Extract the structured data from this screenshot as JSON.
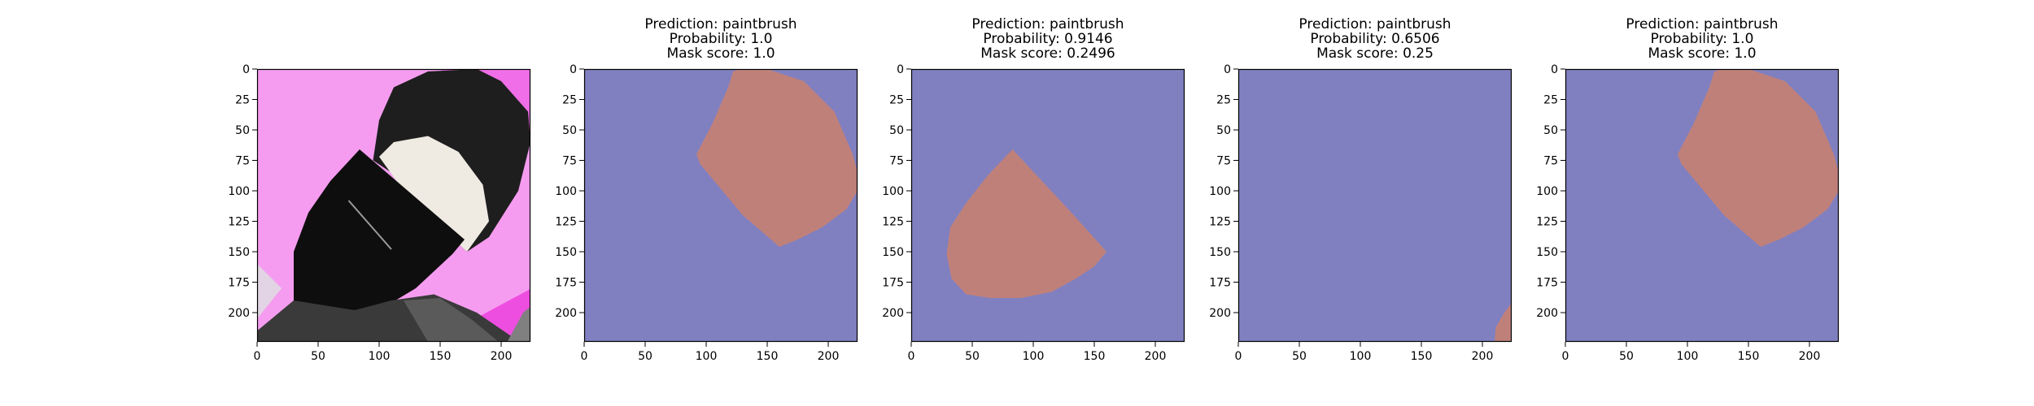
{
  "colors": {
    "background": "#8080c0",
    "mask": "#c0807a",
    "axes": "#000000",
    "photo_bg": "#f59cf0",
    "bristles_dark": "#1e1e1e",
    "bristles_light": "#efeae2",
    "brush_body": "#0e0e0e",
    "ferrule": "#3a3a3a"
  },
  "chart_data": [
    {
      "type": "image",
      "content": "input-photo-paintbrush",
      "title_lines": [],
      "xlim": [
        0,
        224
      ],
      "ylim": [
        224,
        0
      ],
      "xticks": [
        0,
        50,
        100,
        150,
        200
      ],
      "yticks": [
        0,
        25,
        50,
        75,
        100,
        125,
        150,
        175,
        200
      ]
    },
    {
      "type": "heatmap",
      "title_lines": [
        "Prediction: paintbrush",
        "Probability: 1.0",
        "Mask score: 1.0"
      ],
      "xlim": [
        0,
        224
      ],
      "ylim": [
        224,
        0
      ],
      "xticks": [
        0,
        50,
        100,
        150,
        200
      ],
      "yticks": [
        0,
        25,
        50,
        75,
        100,
        125,
        150,
        175,
        200
      ],
      "mask_polygon": [
        [
          122,
          2
        ],
        [
          128,
          0
        ],
        [
          150,
          0
        ],
        [
          180,
          10
        ],
        [
          205,
          35
        ],
        [
          220,
          70
        ],
        [
          224,
          85
        ],
        [
          224,
          100
        ],
        [
          215,
          115
        ],
        [
          195,
          130
        ],
        [
          175,
          140
        ],
        [
          160,
          146
        ],
        [
          130,
          120
        ],
        [
          95,
          78
        ],
        [
          92,
          70
        ],
        [
          105,
          45
        ],
        [
          118,
          15
        ]
      ]
    },
    {
      "type": "heatmap",
      "title_lines": [
        "Prediction: paintbrush",
        "Probability: 0.9146",
        "Mask score: 0.2496"
      ],
      "xlim": [
        0,
        224
      ],
      "ylim": [
        224,
        0
      ],
      "xticks": [
        0,
        50,
        100,
        150,
        200
      ],
      "yticks": [
        0,
        25,
        50,
        75,
        100,
        125,
        150,
        175,
        200
      ],
      "mask_polygon": [
        [
          83,
          66
        ],
        [
          110,
          95
        ],
        [
          135,
          122
        ],
        [
          160,
          150
        ],
        [
          150,
          162
        ],
        [
          135,
          172
        ],
        [
          115,
          183
        ],
        [
          90,
          188
        ],
        [
          65,
          188
        ],
        [
          45,
          185
        ],
        [
          33,
          172
        ],
        [
          29,
          152
        ],
        [
          32,
          130
        ],
        [
          45,
          110
        ],
        [
          63,
          87
        ]
      ]
    },
    {
      "type": "heatmap",
      "title_lines": [
        "Prediction: paintbrush",
        "Probability: 0.6506",
        "Mask score: 0.25"
      ],
      "xlim": [
        0,
        224
      ],
      "ylim": [
        224,
        0
      ],
      "xticks": [
        0,
        50,
        100,
        150,
        200
      ],
      "yticks": [
        0,
        25,
        50,
        75,
        100,
        125,
        150,
        175,
        200
      ],
      "mask_polygon": [
        [
          224,
          192
        ],
        [
          224,
          224
        ],
        [
          210,
          224
        ],
        [
          211,
          212
        ],
        [
          218,
          200
        ]
      ]
    },
    {
      "type": "heatmap",
      "title_lines": [
        "Prediction: paintbrush",
        "Probability: 1.0",
        "Mask score: 1.0"
      ],
      "xlim": [
        0,
        224
      ],
      "ylim": [
        224,
        0
      ],
      "xticks": [
        0,
        50,
        100,
        150,
        200
      ],
      "yticks": [
        0,
        25,
        50,
        75,
        100,
        125,
        150,
        175,
        200
      ],
      "mask_polygon": [
        [
          122,
          2
        ],
        [
          128,
          0
        ],
        [
          150,
          0
        ],
        [
          180,
          10
        ],
        [
          205,
          35
        ],
        [
          220,
          70
        ],
        [
          224,
          85
        ],
        [
          224,
          100
        ],
        [
          215,
          115
        ],
        [
          195,
          130
        ],
        [
          175,
          140
        ],
        [
          160,
          146
        ],
        [
          130,
          120
        ],
        [
          95,
          78
        ],
        [
          92,
          70
        ],
        [
          105,
          45
        ],
        [
          118,
          15
        ]
      ]
    }
  ]
}
